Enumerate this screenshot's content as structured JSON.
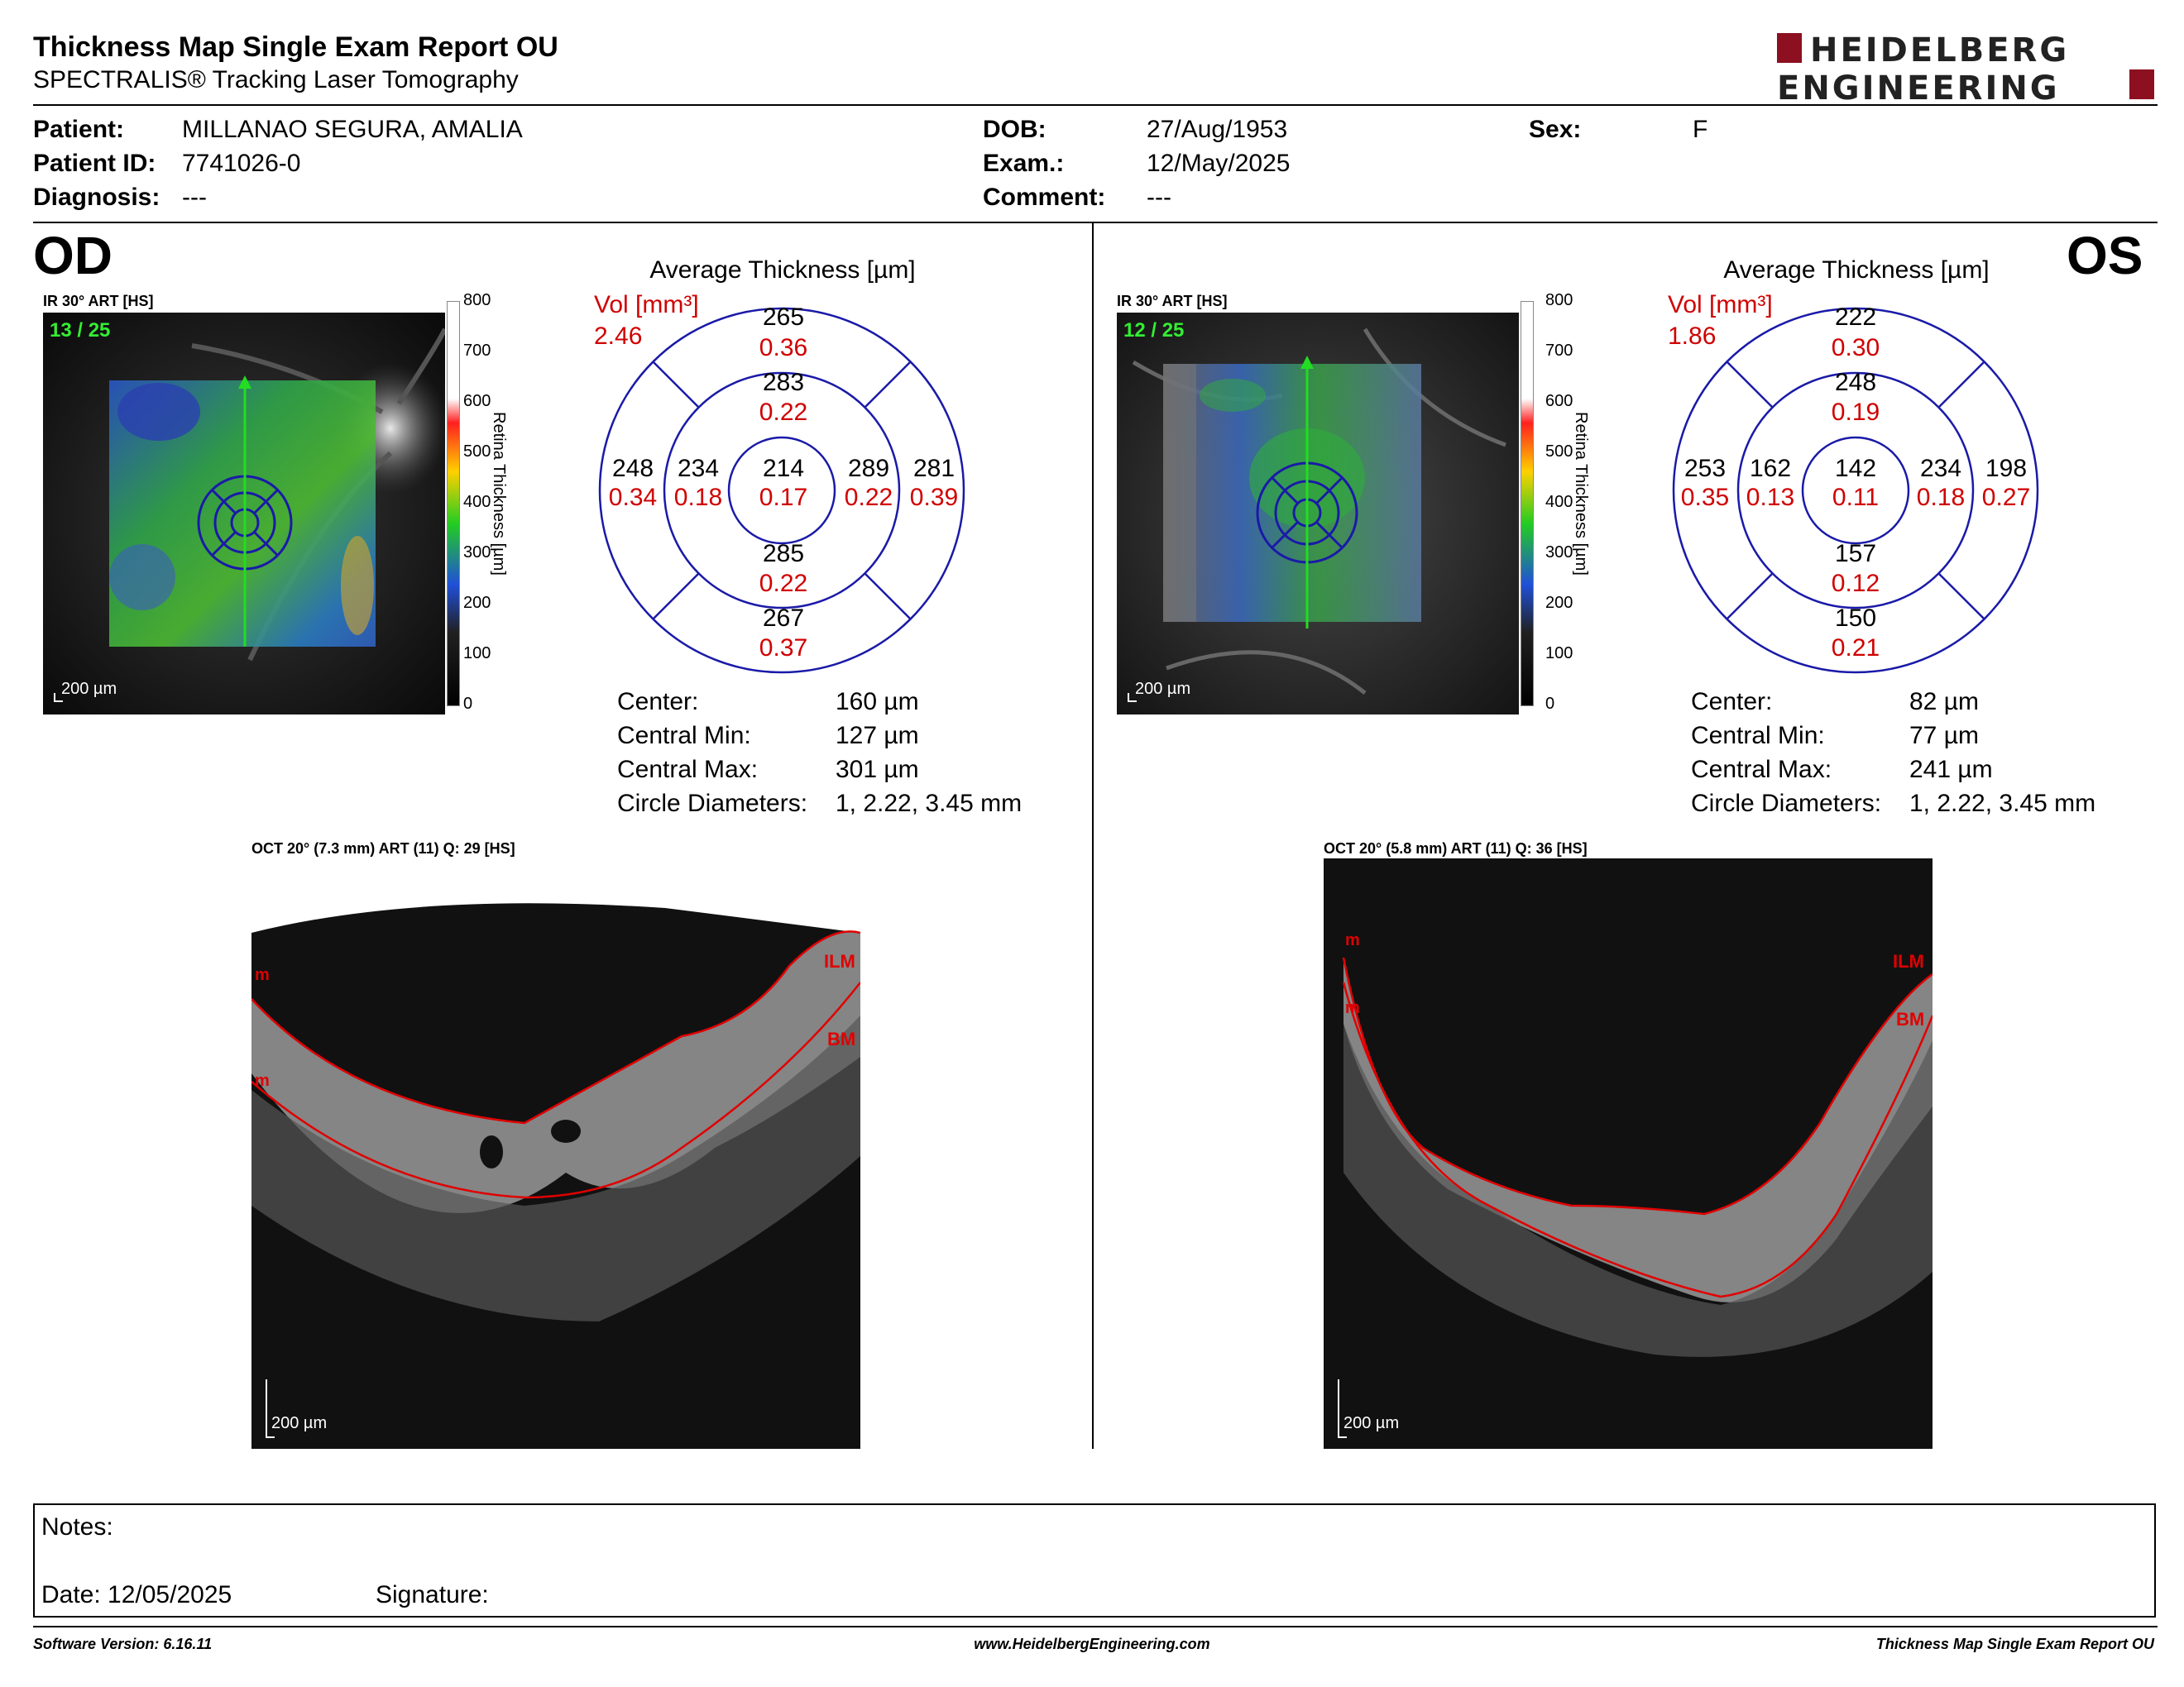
{
  "header": {
    "title": "Thickness Map Single Exam Report OU",
    "subtitle": "SPECTRALIS® Tracking Laser Tomography",
    "logo_line1": "HEIDELBERG",
    "logo_line2": "ENGINEERING"
  },
  "patient": {
    "patient_label": "Patient:",
    "patient_value": "MILLANAO SEGURA, AMALIA",
    "id_label": "Patient ID:",
    "id_value": "7741026-0",
    "diag_label": "Diagnosis:",
    "diag_value": "---",
    "dob_label": "DOB:",
    "dob_value": "27/Aug/1953",
    "exam_label": "Exam.:",
    "exam_value": "12/May/2025",
    "comment_label": "Comment:",
    "comment_value": "---",
    "sex_label": "Sex:",
    "sex_value": "F"
  },
  "od": {
    "eye": "OD",
    "ir_label": "IR 30° ART [HS]",
    "frame": "13 / 25",
    "scale": "200 µm",
    "colorbar_ticks": [
      "800",
      "700",
      "600",
      "500",
      "400",
      "300",
      "200",
      "100",
      "0"
    ],
    "colorbar_label": "Retina Thickness [µm]",
    "avg_title": "Average Thickness [µm]",
    "vol_label": "Vol [mm³]",
    "vol_value": "2.46",
    "grid": {
      "sup_outer": "265",
      "sup_outer_vol": "0.36",
      "sup_inner": "283",
      "sup_inner_vol": "0.22",
      "temp_outer": "248",
      "temp_outer_vol": "0.34",
      "temp_inner": "234",
      "temp_inner_vol": "0.18",
      "center": "214",
      "center_vol": "0.17",
      "nas_inner": "289",
      "nas_inner_vol": "0.22",
      "nas_outer": "281",
      "nas_outer_vol": "0.39",
      "inf_inner": "285",
      "inf_inner_vol": "0.22",
      "inf_outer": "267",
      "inf_outer_vol": "0.37"
    },
    "stats": {
      "center_label": "Center:",
      "center_value": "160 µm",
      "min_label": "Central Min:",
      "min_value": "127 µm",
      "max_label": "Central Max:",
      "max_value": "301 µm",
      "diam_label": "Circle Diameters:",
      "diam_value": "1, 2.22, 3.45 mm"
    },
    "oct_label": "OCT 20° (7.3 mm) ART (11) Q: 29 [HS]",
    "oct_scale": "200 µm",
    "ilm": "ILM",
    "bm": "BM",
    "m": "m"
  },
  "os": {
    "eye": "OS",
    "ir_label": "IR 30° ART [HS]",
    "frame": "12 / 25",
    "scale": "200 µm",
    "colorbar_ticks": [
      "800",
      "700",
      "600",
      "500",
      "400",
      "300",
      "200",
      "100",
      "0"
    ],
    "colorbar_label": "Retina Thickness [µm]",
    "avg_title": "Average Thickness [µm]",
    "vol_label": "Vol [mm³]",
    "vol_value": "1.86",
    "grid": {
      "sup_outer": "222",
      "sup_outer_vol": "0.30",
      "sup_inner": "248",
      "sup_inner_vol": "0.19",
      "temp_outer": "253",
      "temp_outer_vol": "0.35",
      "temp_inner": "162",
      "temp_inner_vol": "0.13",
      "center": "142",
      "center_vol": "0.11",
      "nas_inner": "234",
      "nas_inner_vol": "0.18",
      "nas_outer": "198",
      "nas_outer_vol": "0.27",
      "inf_inner": "157",
      "inf_inner_vol": "0.12",
      "inf_outer": "150",
      "inf_outer_vol": "0.21"
    },
    "stats": {
      "center_label": "Center:",
      "center_value": "82 µm",
      "min_label": "Central Min:",
      "min_value": "77 µm",
      "max_label": "Central Max:",
      "max_value": "241 µm",
      "diam_label": "Circle Diameters:",
      "diam_value": "1, 2.22, 3.45 mm"
    },
    "oct_label": "OCT 20° (5.8 mm) ART (11) Q: 36 [HS]",
    "oct_scale": "200 µm",
    "ilm": "ILM",
    "bm": "BM",
    "m": "m"
  },
  "notes": {
    "notes_label": "Notes:",
    "date_label": "Date: 12/05/2025",
    "signature_label": "Signature:"
  },
  "footer": {
    "software": "Software Version: 6.16.11",
    "website": "www.HeidelbergEngineering.com",
    "report_name": "Thickness Map Single Exam Report OU"
  },
  "colors": {
    "grid_stroke": "#1a1aa8",
    "volume_red": "#d00000",
    "logo_red": "#8c1020",
    "scan_line": "#22dd22",
    "frame_green": "#33ee33"
  }
}
